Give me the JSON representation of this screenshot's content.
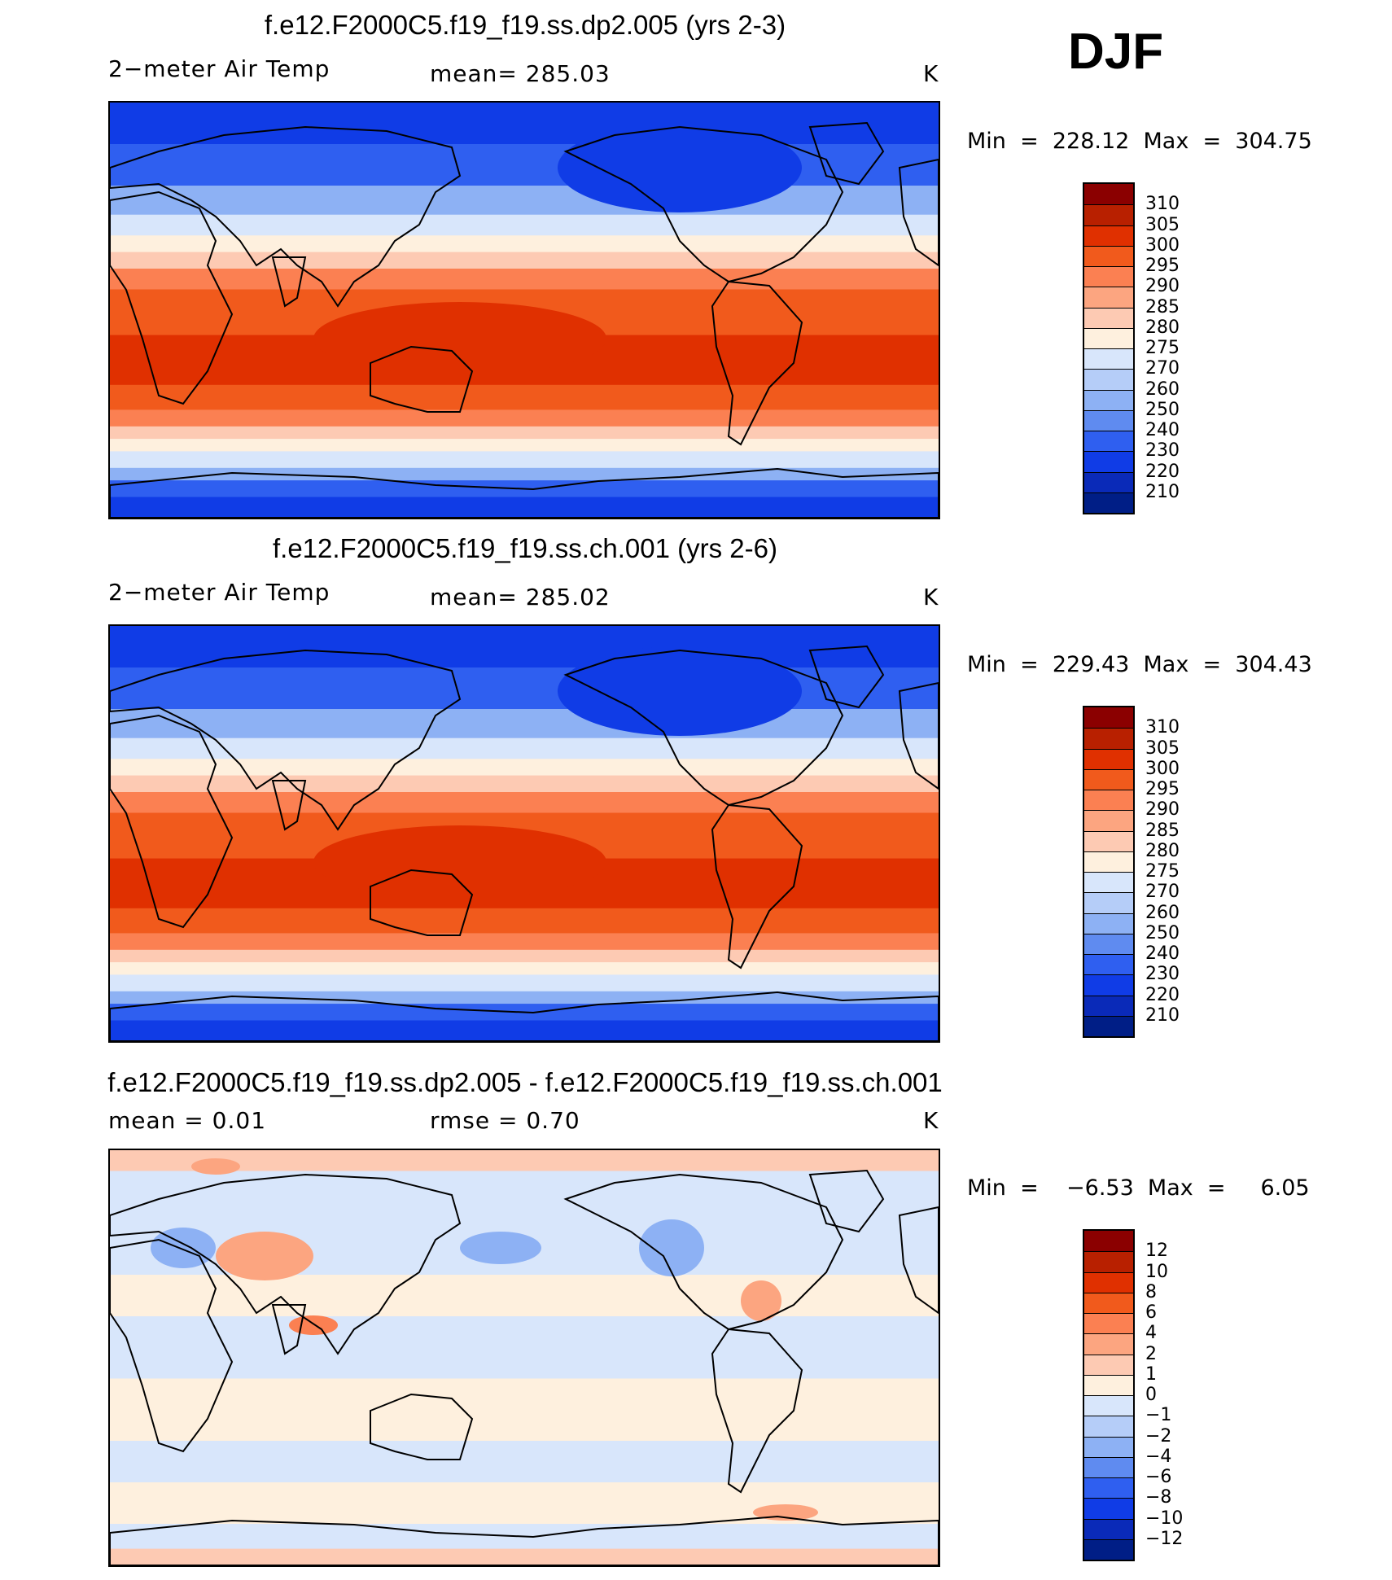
{
  "season": "DJF",
  "chart_data": [
    {
      "type": "heatmap",
      "title": "f.e12.F2000C5.f19_f19.ss.dp2.005 (yrs 2-3)",
      "variable": "2−meter Air Temp",
      "stat": "mean=  285.03",
      "units": "K",
      "minmax": "Min  =  228.12  Max  =  304.75",
      "min": 228.12,
      "max": 304.75,
      "mean": 285.03,
      "levels": [
        "310",
        "305",
        "300",
        "295",
        "290",
        "285",
        "280",
        "275",
        "270",
        "260",
        "250",
        "240",
        "230",
        "220",
        "210"
      ],
      "colors": [
        "#8b0000",
        "#b82000",
        "#e03000",
        "#f15a1c",
        "#fb8052",
        "#fca580",
        "#fdcab3",
        "#fef0de",
        "#d8e6fb",
        "#b5cdf8",
        "#8db1f4",
        "#5f8bf0",
        "#2f5ff0",
        "#103ce6",
        "#0a2ab8",
        "#001e86"
      ],
      "palette": "warm"
    },
    {
      "type": "heatmap",
      "title": "f.e12.F2000C5.f19_f19.ss.ch.001 (yrs 2-6)",
      "variable": "2−meter Air Temp",
      "stat": "mean=  285.02",
      "units": "K",
      "minmax": "Min  =  229.43  Max  =  304.43",
      "min": 229.43,
      "max": 304.43,
      "mean": 285.02,
      "levels": [
        "310",
        "305",
        "300",
        "295",
        "290",
        "285",
        "280",
        "275",
        "270",
        "260",
        "250",
        "240",
        "230",
        "220",
        "210"
      ],
      "colors": [
        "#8b0000",
        "#b82000",
        "#e03000",
        "#f15a1c",
        "#fb8052",
        "#fca580",
        "#fdcab3",
        "#fef0de",
        "#d8e6fb",
        "#b5cdf8",
        "#8db1f4",
        "#5f8bf0",
        "#2f5ff0",
        "#103ce6",
        "#0a2ab8",
        "#001e86"
      ],
      "palette": "warm"
    },
    {
      "type": "heatmap",
      "title": "f.e12.F2000C5.f19_f19.ss.dp2.005 - f.e12.F2000C5.f19_f19.ss.ch.001",
      "variable": "mean =     0.01",
      "stat": "rmse =     0.70",
      "units": "K",
      "minmax": "Min  =    −6.53  Max  =     6.05",
      "min": -6.53,
      "max": 6.05,
      "mean": 0.01,
      "rmse": 0.7,
      "levels": [
        "12",
        "10",
        "8",
        "6",
        "4",
        "2",
        "1",
        "0",
        "−1",
        "−2",
        "−4",
        "−6",
        "−8",
        "−10",
        "−12"
      ],
      "colors": [
        "#8b0000",
        "#b82000",
        "#e03000",
        "#f15a1c",
        "#fb8052",
        "#fca580",
        "#fdcab3",
        "#fef0de",
        "#d8e6fb",
        "#b5cdf8",
        "#8db1f4",
        "#5f8bf0",
        "#2f5ff0",
        "#103ce6",
        "#0a2ab8",
        "#001e86"
      ],
      "palette": "diff"
    }
  ]
}
